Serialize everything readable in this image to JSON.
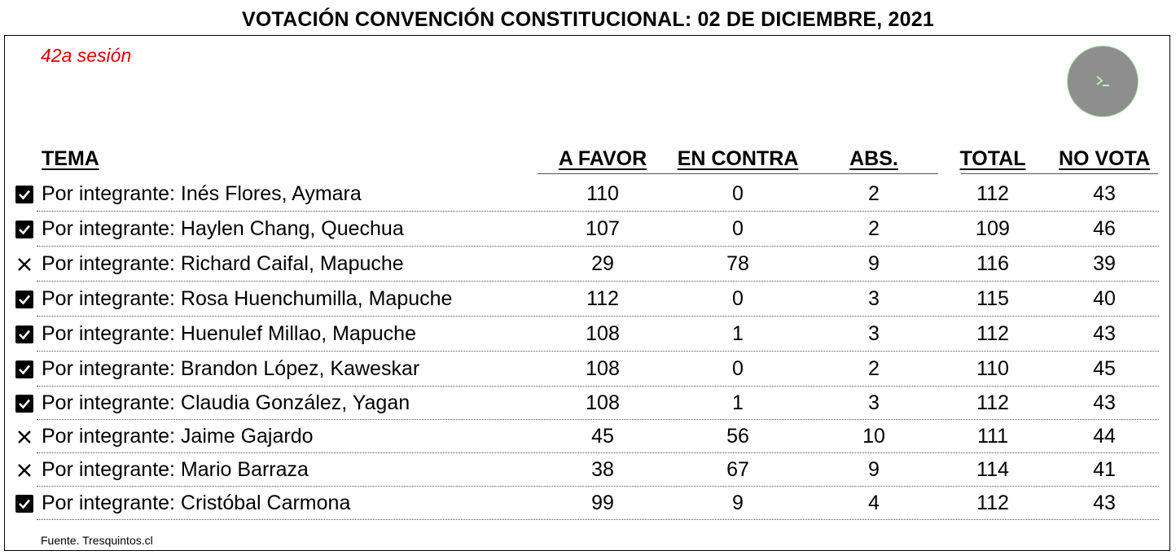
{
  "title": "VOTACIÓN CONVENCIÓN CONSTITUCIONAL: 02 DE DICIEMBRE, 2021",
  "session": "42a sesión",
  "badge_icon": "terminal-icon",
  "columns": {
    "tema": "TEMA",
    "a_favor": "A FAVOR",
    "en_contra": "EN CONTRA",
    "abs": "ABS.",
    "total": "TOTAL",
    "no_vota": "NO VOTA"
  },
  "rows": [
    {
      "status": "approved",
      "tema": "Por integrante: Inés Flores, Aymara",
      "a_favor": "110",
      "en_contra": "0",
      "abs": "2",
      "total": "112",
      "no_vota": "43"
    },
    {
      "status": "approved",
      "tema": "Por integrante: Haylen Chang, Quechua",
      "a_favor": "107",
      "en_contra": "0",
      "abs": "2",
      "total": "109",
      "no_vota": "46"
    },
    {
      "status": "rejected",
      "tema": "Por integrante: Richard Caifal, Mapuche",
      "a_favor": "29",
      "en_contra": "78",
      "abs": "9",
      "total": "116",
      "no_vota": "39"
    },
    {
      "status": "approved",
      "tema": "Por integrante: Rosa Huenchumilla, Mapuche",
      "a_favor": "112",
      "en_contra": "0",
      "abs": "3",
      "total": "115",
      "no_vota": "40"
    },
    {
      "status": "approved",
      "tema": "Por integrante: Huenulef Millao, Mapuche",
      "a_favor": "108",
      "en_contra": "1",
      "abs": "3",
      "total": "112",
      "no_vota": "43"
    },
    {
      "status": "approved",
      "tema": "Por integrante: Brandon López, Kaweskar",
      "a_favor": "108",
      "en_contra": "0",
      "abs": "2",
      "total": "110",
      "no_vota": "45"
    },
    {
      "status": "approved",
      "tema": "Por integrante: Claudia González, Yagan",
      "a_favor": "108",
      "en_contra": "1",
      "abs": "3",
      "total": "112",
      "no_vota": "43"
    },
    {
      "status": "rejected",
      "tema": "Por integrante: Jaime Gajardo",
      "a_favor": "45",
      "en_contra": "56",
      "abs": "10",
      "total": "111",
      "no_vota": "44"
    },
    {
      "status": "rejected",
      "tema": "Por integrante: Mario Barraza",
      "a_favor": "38",
      "en_contra": "67",
      "abs": "9",
      "total": "114",
      "no_vota": "41"
    },
    {
      "status": "approved",
      "tema": "Por integrante: Cristóbal Carmona",
      "a_favor": "99",
      "en_contra": "9",
      "abs": "4",
      "total": "112",
      "no_vota": "43"
    }
  ],
  "status_icons": {
    "approved": "checkbox-checked-icon",
    "rejected": "cross-icon"
  },
  "source": "Fuente. Tresquintos.cl"
}
